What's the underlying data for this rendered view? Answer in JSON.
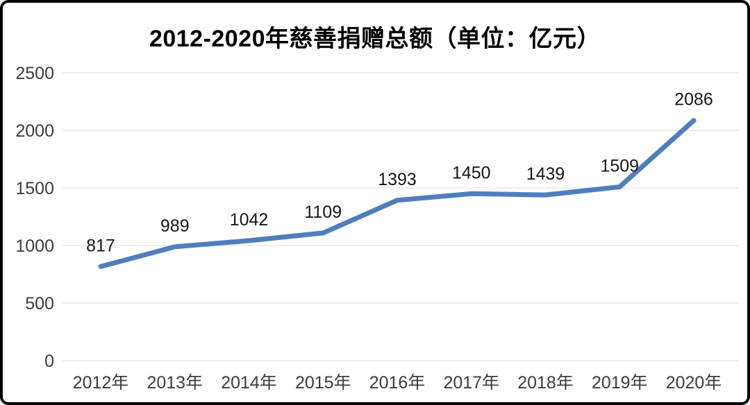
{
  "frame": {
    "background": "#ffffff",
    "border_color": "#000000"
  },
  "chart_data": {
    "type": "line",
    "title": "2012-2020年慈善捐赠总额（单位：亿元）",
    "categories": [
      "2012年",
      "2013年",
      "2014年",
      "2015年",
      "2016年",
      "2017年",
      "2018年",
      "2019年",
      "2020年"
    ],
    "series": [
      {
        "name": "慈善捐赠总额",
        "values": [
          817,
          989,
          1042,
          1109,
          1393,
          1450,
          1439,
          1509,
          2086
        ]
      }
    ],
    "y_ticks": [
      0,
      500,
      1000,
      1500,
      2000,
      2500
    ],
    "ylim": [
      0,
      2500
    ],
    "xlabel": "",
    "ylabel": "",
    "grid": true,
    "legend": "none",
    "data_labels_shown": true,
    "colors": {
      "line": "#4f7ebe",
      "grid": "#ededed",
      "data_label": "#161616",
      "axis_label": "#3c3c3c",
      "title": "#000000"
    }
  }
}
